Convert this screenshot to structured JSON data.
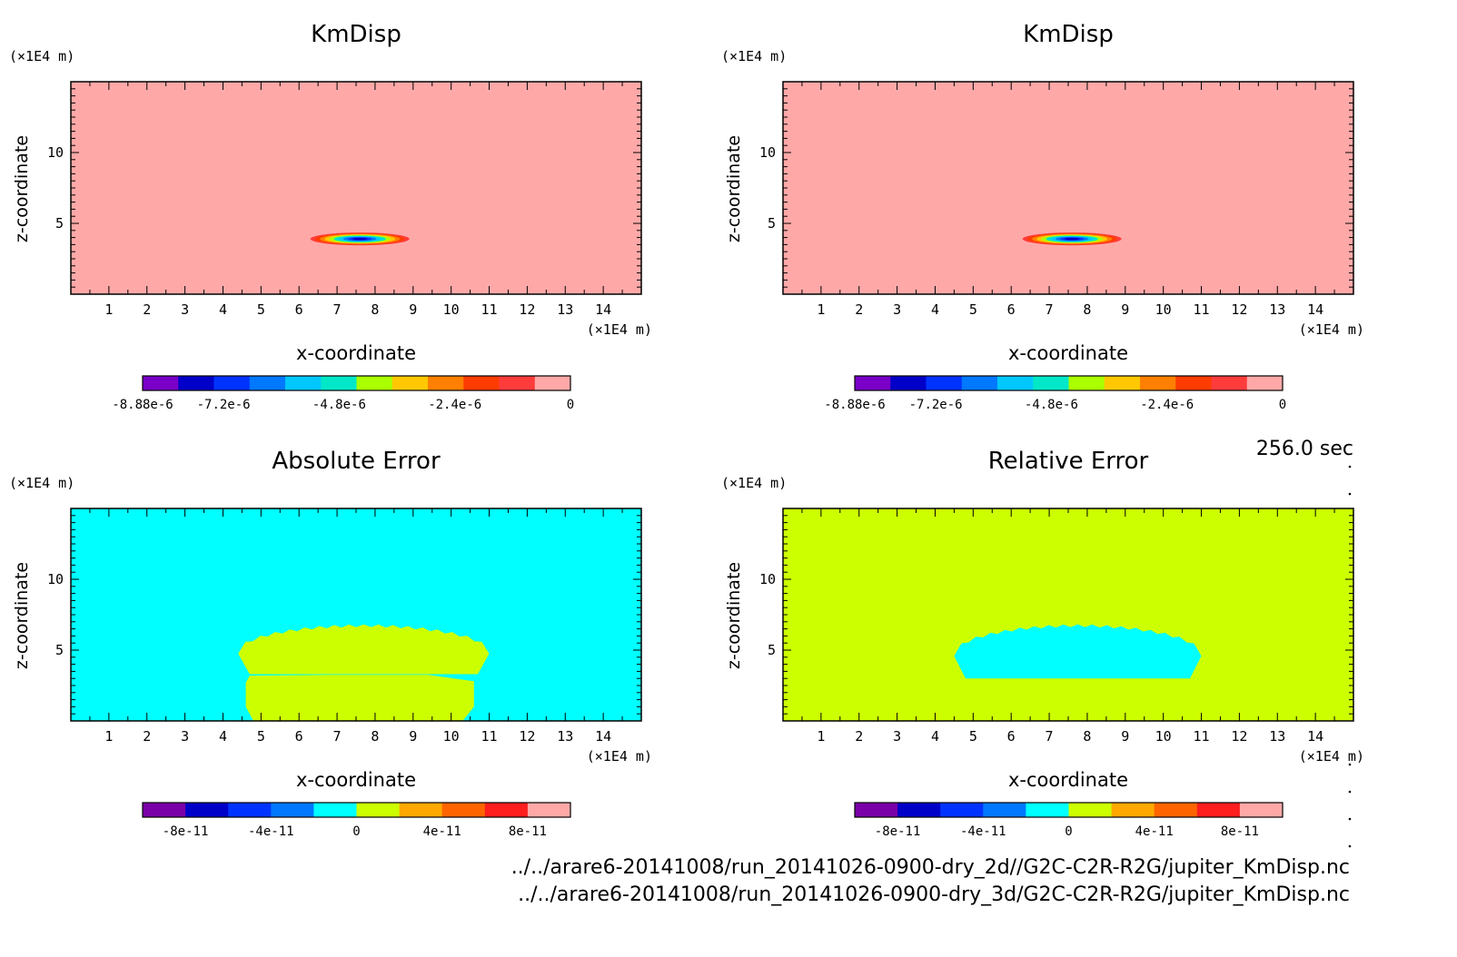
{
  "figure": {
    "time_label": "256.0 sec",
    "footer": [
      "../../arare6-20141008/run_20141026-0900-dry_2d//G2C-C2R-R2G/jupiter_KmDisp.nc",
      "../../arare6-20141008/run_20141026-0900-dry_3d/G2C-C2R-R2G/jupiter_KmDisp.nc"
    ]
  },
  "chart_data": [
    {
      "type": "heatmap",
      "title": "KmDisp",
      "xlabel": "x-coordinate",
      "ylabel": "z-coordinate",
      "x_unit": "(×1E4 m)",
      "y_unit": "(×1E4 m)",
      "xlim": [
        0,
        15
      ],
      "ylim": [
        0,
        15
      ],
      "x_ticks": [
        "1",
        "2",
        "3",
        "4",
        "5",
        "6",
        "7",
        "8",
        "9",
        "10",
        "11",
        "12",
        "13",
        "14"
      ],
      "y_ticks": [
        "5",
        "10"
      ],
      "background_color": "#ffa8a8",
      "feature": {
        "kind": "gaussian-blob",
        "center_x": 7.6,
        "center_z": 3.9,
        "radius_x": 1.3,
        "radius_z": 0.45,
        "min_value": -8.88e-06
      },
      "colorbar": {
        "colors": [
          "#7a00c8",
          "#0000c8",
          "#0033ff",
          "#0078ff",
          "#00c8ff",
          "#00e8c8",
          "#aaff00",
          "#ffc800",
          "#ff8000",
          "#ff3c00",
          "#ff3c3c",
          "#ffa8a8"
        ],
        "tick_labels": [
          "-8.88e-6",
          "-7.2e-6",
          "-4.8e-6",
          "-2.4e-6",
          "0"
        ],
        "tick_values": [
          -8.88e-06,
          -7.2e-06,
          -4.8e-06,
          -2.4e-06,
          0
        ],
        "range": [
          -8.88e-06,
          0
        ]
      }
    },
    {
      "type": "heatmap",
      "title": "KmDisp",
      "xlabel": "x-coordinate",
      "ylabel": "z-coordinate",
      "x_unit": "(×1E4 m)",
      "y_unit": "(×1E4 m)",
      "xlim": [
        0,
        15
      ],
      "ylim": [
        0,
        15
      ],
      "x_ticks": [
        "1",
        "2",
        "3",
        "4",
        "5",
        "6",
        "7",
        "8",
        "9",
        "10",
        "11",
        "12",
        "13",
        "14"
      ],
      "y_ticks": [
        "5",
        "10"
      ],
      "background_color": "#ffa8a8",
      "feature": {
        "kind": "gaussian-blob",
        "center_x": 7.6,
        "center_z": 3.9,
        "radius_x": 1.3,
        "radius_z": 0.45,
        "min_value": -8.88e-06
      },
      "colorbar": {
        "colors": [
          "#7a00c8",
          "#0000c8",
          "#0033ff",
          "#0078ff",
          "#00c8ff",
          "#00e8c8",
          "#aaff00",
          "#ffc800",
          "#ff8000",
          "#ff3c00",
          "#ff3c3c",
          "#ffa8a8"
        ],
        "tick_labels": [
          "-8.88e-6",
          "-7.2e-6",
          "-4.8e-6",
          "-2.4e-6",
          "0"
        ],
        "tick_values": [
          -8.88e-06,
          -7.2e-06,
          -4.8e-06,
          -2.4e-06,
          0
        ],
        "range": [
          -8.88e-06,
          0
        ]
      }
    },
    {
      "type": "heatmap",
      "title": "Absolute Error",
      "xlabel": "x-coordinate",
      "ylabel": "z-coordinate",
      "x_unit": "(×1E4 m)",
      "y_unit": "(×1E4 m)",
      "xlim": [
        0,
        15
      ],
      "ylim": [
        0,
        15
      ],
      "x_ticks": [
        "1",
        "2",
        "3",
        "4",
        "5",
        "6",
        "7",
        "8",
        "9",
        "10",
        "11",
        "12",
        "13",
        "14"
      ],
      "y_ticks": [
        "5",
        "10"
      ],
      "background_color": "#00ffff",
      "feature": {
        "kind": "region",
        "color": "#ccff00",
        "upper_lobe": {
          "x_left": 4.4,
          "x_right": 11.0,
          "z_bottom": 3.3,
          "z_top": 6.7
        },
        "lower_lobe": {
          "x_left": 4.6,
          "x_right": 10.6,
          "z_bottom": 0.0,
          "z_top": 3.2
        }
      },
      "colorbar": {
        "colors": [
          "#7a00a8",
          "#0000c8",
          "#0033ff",
          "#0078ff",
          "#00ffff",
          "#ccff00",
          "#ffa800",
          "#ff6400",
          "#ff1e1e",
          "#ffa8a8"
        ],
        "tick_labels": [
          "-8e-11",
          "-4e-11",
          "0",
          "4e-11",
          "8e-11"
        ],
        "tick_values": [
          -8e-11,
          -4e-11,
          0,
          4e-11,
          8e-11
        ],
        "range": [
          -1e-10,
          1e-10
        ]
      }
    },
    {
      "type": "heatmap",
      "title": "Relative Error",
      "xlabel": "x-coordinate",
      "ylabel": "z-coordinate",
      "x_unit": "(×1E4 m)",
      "y_unit": "(×1E4 m)",
      "xlim": [
        0,
        15
      ],
      "ylim": [
        0,
        15
      ],
      "x_ticks": [
        "1",
        "2",
        "3",
        "4",
        "5",
        "6",
        "7",
        "8",
        "9",
        "10",
        "11",
        "12",
        "13",
        "14"
      ],
      "y_ticks": [
        "5",
        "10"
      ],
      "background_color": "#ccff00",
      "feature": {
        "kind": "region",
        "color": "#00ffff",
        "upper_lobe": {
          "x_left": 4.5,
          "x_right": 11.0,
          "z_bottom": 3.0,
          "z_top": 6.7
        }
      },
      "colorbar": {
        "colors": [
          "#7a00a8",
          "#0000c8",
          "#0033ff",
          "#0078ff",
          "#00ffff",
          "#ccff00",
          "#ffa800",
          "#ff6400",
          "#ff1e1e",
          "#ffa8a8"
        ],
        "tick_labels": [
          "-8e-11",
          "-4e-11",
          "0",
          "4e-11",
          "8e-11"
        ],
        "tick_values": [
          -8e-11,
          -4e-11,
          0,
          4e-11,
          8e-11
        ],
        "range": [
          -1e-10,
          1e-10
        ]
      }
    }
  ]
}
